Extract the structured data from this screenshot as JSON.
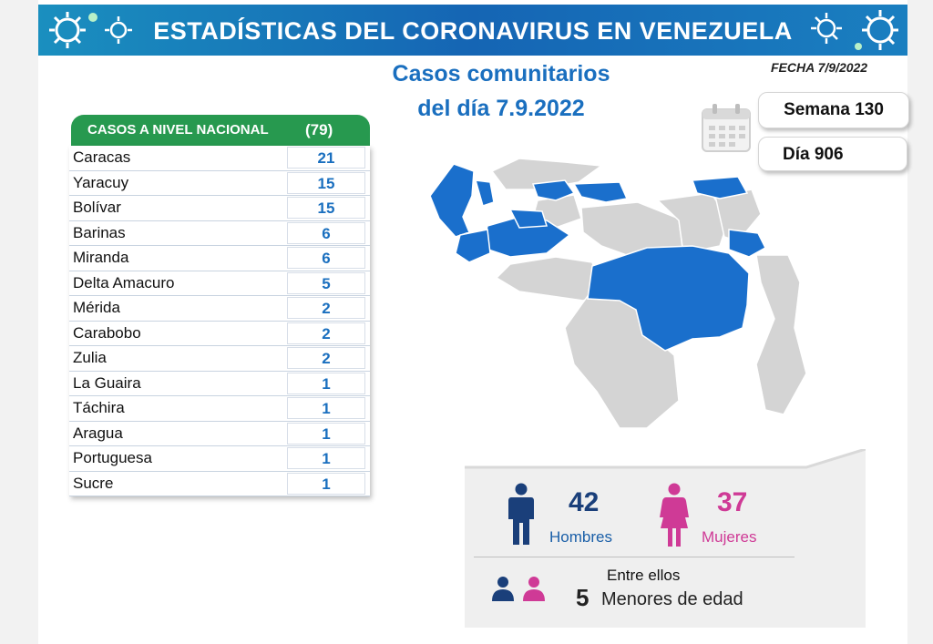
{
  "banner": {
    "title": "ESTADÍSTICAS DEL CORONAVIRUS EN VENEZUELA"
  },
  "header": {
    "subtitle_line1": "Casos comunitarios",
    "subtitle_line2": "del día 7.9.2022",
    "fecha": "FECHA 7/9/2022",
    "semana": "Semana 130",
    "dia": "Día 906"
  },
  "table": {
    "header_label": "CASOS A NIVEL NACIONAL",
    "header_total": "(79)",
    "rows": [
      {
        "state": "Caracas",
        "cases": "21"
      },
      {
        "state": "Yaracuy",
        "cases": "15"
      },
      {
        "state": "Bolívar",
        "cases": "15"
      },
      {
        "state": "Barinas",
        "cases": "6"
      },
      {
        "state": "Miranda",
        "cases": "6"
      },
      {
        "state": "Delta Amacuro",
        "cases": "5"
      },
      {
        "state": "Mérida",
        "cases": "2"
      },
      {
        "state": "Carabobo",
        "cases": "2"
      },
      {
        "state": "Zulia",
        "cases": "2"
      },
      {
        "state": "La Guaira",
        "cases": "1"
      },
      {
        "state": "Táchira",
        "cases": "1"
      },
      {
        "state": "Aragua",
        "cases": "1"
      },
      {
        "state": "Portuguesa",
        "cases": "1"
      },
      {
        "state": "Sucre",
        "cases": "1"
      }
    ]
  },
  "gender": {
    "men_count": "42",
    "men_label": "Hombres",
    "women_count": "37",
    "women_label": "Mujeres",
    "men_color": "#1a3f7a",
    "women_color": "#cf3a96"
  },
  "minors": {
    "intro": "Entre ellos",
    "count": "5",
    "label": "Menores de edad"
  },
  "colors": {
    "affected_state": "#1a6fcc",
    "unaffected_state": "#d4d4d4",
    "table_header": "#27994f",
    "banner": "#1565b4"
  },
  "icons": [
    "virus-icon",
    "calendar-icon",
    "man-icon",
    "woman-icon",
    "people-icon"
  ]
}
